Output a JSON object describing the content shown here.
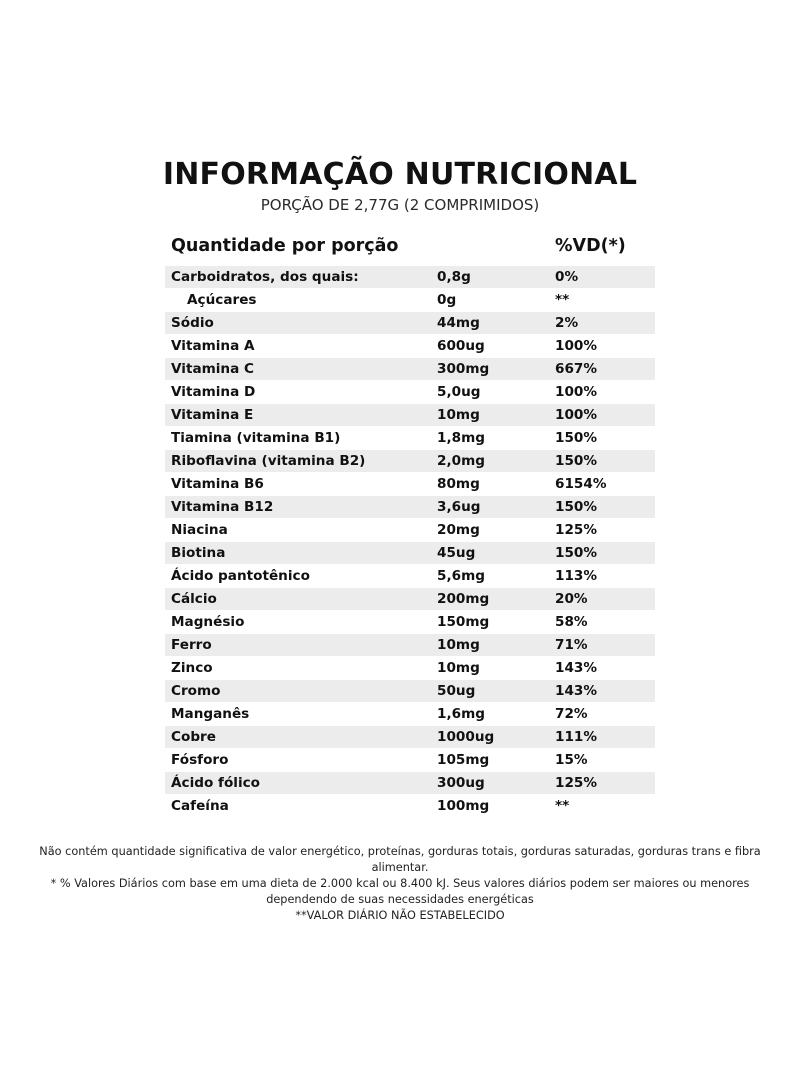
{
  "header": {
    "title": "INFORMAÇÃO NUTRICIONAL",
    "subtitle": "PORÇÃO DE 2,77G (2 COMPRIMIDOS)"
  },
  "table": {
    "col_name": "Quantidade por porção",
    "col_vd": "%VD(*)",
    "rows": [
      {
        "name": "Carboidratos, dos quais:",
        "qty": "0,8g",
        "vd": "0%",
        "shaded": true,
        "indent": false
      },
      {
        "name": "Açúcares",
        "qty": "0g",
        "vd": "**",
        "shaded": false,
        "indent": true
      },
      {
        "name": "Sódio",
        "qty": "44mg",
        "vd": "2%",
        "shaded": true,
        "indent": false
      },
      {
        "name": "Vitamina A",
        "qty": "600ug",
        "vd": "100%",
        "shaded": false,
        "indent": false
      },
      {
        "name": "Vitamina C",
        "qty": "300mg",
        "vd": "667%",
        "shaded": true,
        "indent": false
      },
      {
        "name": "Vitamina D",
        "qty": "5,0ug",
        "vd": "100%",
        "shaded": false,
        "indent": false
      },
      {
        "name": "Vitamina E",
        "qty": "10mg",
        "vd": "100%",
        "shaded": true,
        "indent": false
      },
      {
        "name": "Tiamina (vitamina B1)",
        "qty": "1,8mg",
        "vd": "150%",
        "shaded": false,
        "indent": false
      },
      {
        "name": "Riboflavina (vitamina B2)",
        "qty": "2,0mg",
        "vd": "150%",
        "shaded": true,
        "indent": false
      },
      {
        "name": "Vitamina B6",
        "qty": "80mg",
        "vd": "6154%",
        "shaded": false,
        "indent": false
      },
      {
        "name": "Vitamina B12",
        "qty": "3,6ug",
        "vd": "150%",
        "shaded": true,
        "indent": false
      },
      {
        "name": "Niacina",
        "qty": "20mg",
        "vd": "125%",
        "shaded": false,
        "indent": false
      },
      {
        "name": "Biotina",
        "qty": "45ug",
        "vd": "150%",
        "shaded": true,
        "indent": false
      },
      {
        "name": "Ácido pantotênico",
        "qty": "5,6mg",
        "vd": "113%",
        "shaded": false,
        "indent": false
      },
      {
        "name": "Cálcio",
        "qty": "200mg",
        "vd": "20%",
        "shaded": true,
        "indent": false
      },
      {
        "name": "Magnésio",
        "qty": "150mg",
        "vd": "58%",
        "shaded": false,
        "indent": false
      },
      {
        "name": "Ferro",
        "qty": "10mg",
        "vd": "71%",
        "shaded": true,
        "indent": false
      },
      {
        "name": "Zinco",
        "qty": "10mg",
        "vd": "143%",
        "shaded": false,
        "indent": false
      },
      {
        "name": "Cromo",
        "qty": "50ug",
        "vd": "143%",
        "shaded": true,
        "indent": false
      },
      {
        "name": "Manganês",
        "qty": "1,6mg",
        "vd": "72%",
        "shaded": false,
        "indent": false
      },
      {
        "name": "Cobre",
        "qty": "1000ug",
        "vd": "111%",
        "shaded": true,
        "indent": false
      },
      {
        "name": "Fósforo",
        "qty": "105mg",
        "vd": "15%",
        "shaded": false,
        "indent": false
      },
      {
        "name": "Ácido fólico",
        "qty": "300ug",
        "vd": "125%",
        "shaded": true,
        "indent": false
      },
      {
        "name": "Cafeína",
        "qty": "100mg",
        "vd": "**",
        "shaded": false,
        "indent": false
      }
    ]
  },
  "footnotes": {
    "line1": "Não contém quantidade significativa de valor energético, proteínas, gorduras totais, gorduras saturadas, gorduras trans e fibra",
    "line2": "alimentar.",
    "line3": "* % Valores Diários com base em uma dieta de 2.000 kcal ou 8.400 kJ. Seus valores diários podem ser maiores ou menores",
    "line4": "dependendo de suas necessidades energéticas",
    "line5": "**VALOR DIÁRIO NÃO ESTABELECIDO"
  }
}
